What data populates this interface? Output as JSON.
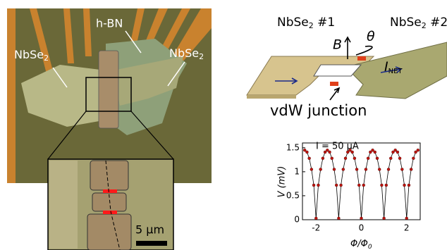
{
  "micrograph": {
    "labels": {
      "hbn": "h-BN",
      "nbse2_left": [
        "NbSe",
        "2"
      ],
      "nbse2_right": [
        "NbSe",
        "2"
      ]
    },
    "scale_bar": "5 µm"
  },
  "schematic": {
    "left_flake": [
      "NbSe",
      "2",
      " #1"
    ],
    "right_flake": [
      "NbSe",
      "2",
      " #2"
    ],
    "field": "B",
    "angle": "θ",
    "current": [
      "I",
      "NET"
    ],
    "junction": "vdW junction"
  },
  "chart_data": {
    "type": "line",
    "annotation": "I = 50 µA",
    "ylabel": "V (mV)",
    "xlabel": [
      "Φ/Φ",
      "0"
    ],
    "x": [
      -2.5,
      -2.4,
      -2.3,
      -2.2,
      -2.1,
      -2.0,
      -1.9,
      -1.8,
      -1.7,
      -1.6,
      -1.5,
      -1.4,
      -1.3,
      -1.2,
      -1.1,
      -1.0,
      -0.9,
      -0.8,
      -0.7,
      -0.6,
      -0.5,
      -0.4,
      -0.3,
      -0.2,
      -0.1,
      0,
      0.1,
      0.2,
      0.3,
      0.4,
      0.5,
      0.6,
      0.7,
      0.8,
      0.9,
      1.0,
      1.1,
      1.2,
      1.3,
      1.4,
      1.5,
      1.6,
      1.7,
      1.8,
      1.9,
      2.0,
      2.1,
      2.2,
      2.3,
      2.4,
      2.5
    ],
    "series": [
      {
        "color": "#c0150f",
        "values": [
          1.45,
          1.41,
          1.28,
          1.05,
          0.72,
          0.03,
          0.72,
          1.05,
          1.28,
          1.41,
          1.45,
          1.41,
          1.28,
          1.05,
          0.72,
          0.03,
          0.72,
          1.05,
          1.28,
          1.41,
          1.45,
          1.41,
          1.28,
          1.05,
          0.72,
          0.03,
          0.72,
          1.05,
          1.28,
          1.41,
          1.45,
          1.41,
          1.28,
          1.05,
          0.72,
          0.03,
          0.72,
          1.05,
          1.28,
          1.41,
          1.45,
          1.41,
          1.28,
          1.05,
          0.72,
          0.03,
          0.72,
          1.05,
          1.28,
          1.41,
          1.45
        ]
      }
    ],
    "xlim": [
      -2.6,
      2.6
    ],
    "ylim": [
      0,
      1.6
    ],
    "xticks": [
      -2,
      0,
      2
    ],
    "yticks": [
      0,
      0.5,
      1,
      1.5
    ]
  }
}
